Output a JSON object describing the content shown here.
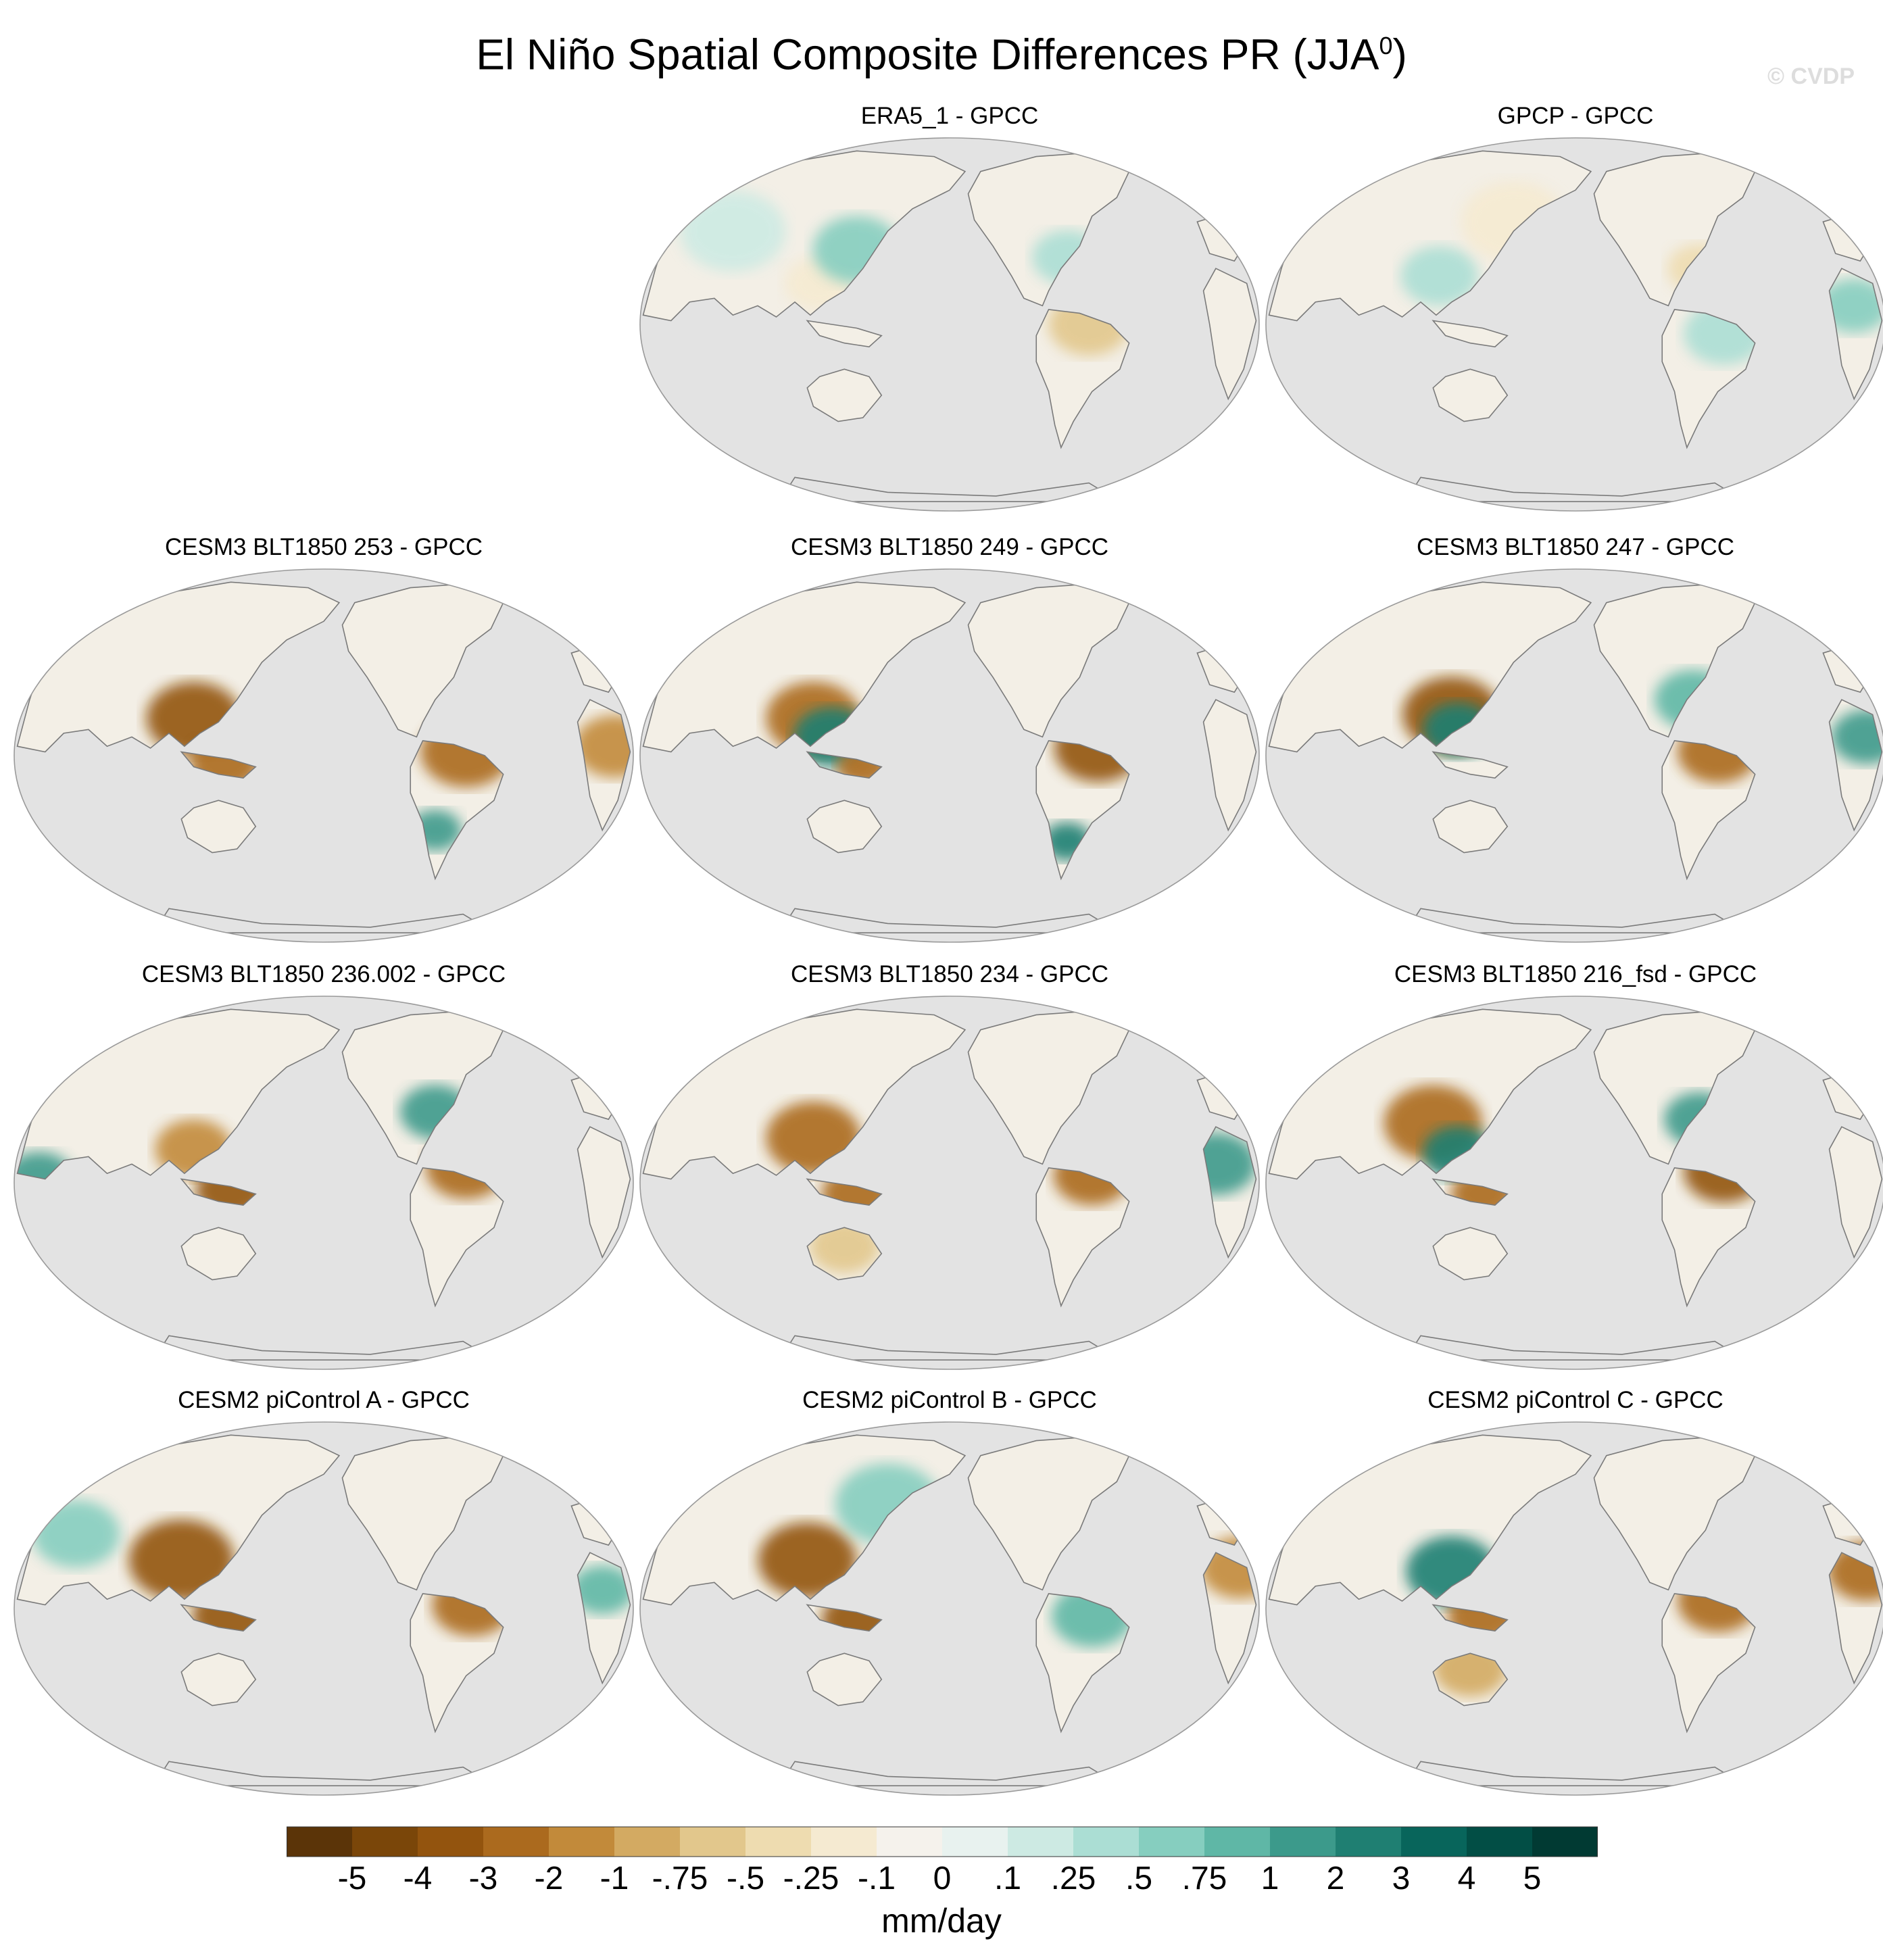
{
  "title": {
    "text": "El Niño Spatial Composite Differences PR (JJA",
    "superscript": "0",
    "close": ")"
  },
  "watermark": "© CVDP",
  "panels": [
    {
      "title": "ERA5_1 - GPCC",
      "row": 0,
      "col": 1
    },
    {
      "title": "GPCP - GPCC",
      "row": 0,
      "col": 2
    },
    {
      "title": "CESM3 BLT1850 253 - GPCC",
      "row": 1,
      "col": 0
    },
    {
      "title": "CESM3 BLT1850 249 - GPCC",
      "row": 1,
      "col": 1
    },
    {
      "title": "CESM3 BLT1850 247 - GPCC",
      "row": 1,
      "col": 2
    },
    {
      "title": "CESM3 BLT1850 236.002 - GPCC",
      "row": 2,
      "col": 0
    },
    {
      "title": "CESM3 BLT1850 234 - GPCC",
      "row": 2,
      "col": 1
    },
    {
      "title": "CESM3 BLT1850 216_fsd - GPCC",
      "row": 2,
      "col": 2
    },
    {
      "title": "CESM2 piControl A - GPCC",
      "row": 3,
      "col": 0
    },
    {
      "title": "CESM2 piControl B - GPCC",
      "row": 3,
      "col": 1
    },
    {
      "title": "CESM2 piControl C - GPCC",
      "row": 3,
      "col": 2
    }
  ],
  "colorbar": {
    "units": "mm/day",
    "labels": [
      "-5",
      "-4",
      "-3",
      "-2",
      "-1",
      "-.75",
      "-.5",
      "-.25",
      "-.1",
      "0",
      ".1",
      ".25",
      ".5",
      ".75",
      "1",
      "2",
      "3",
      "4",
      "5"
    ],
    "colors": [
      "#5b3408",
      "#7a4609",
      "#93540e",
      "#ab6a1e",
      "#c28a3a",
      "#d3aa62",
      "#e2c78c",
      "#eedcb0",
      "#f5ead1",
      "#f5f2ec",
      "#e8f2ef",
      "#cdeae3",
      "#abded4",
      "#86cebf",
      "#5fb7a6",
      "#3c9a8b",
      "#1f7f72",
      "#08655b",
      "#024e45",
      "#013a33"
    ]
  },
  "colors": {
    "ocean": "#e3e3e3",
    "coastline": "#7a7a7a",
    "frame": "#9a9a9a"
  }
}
